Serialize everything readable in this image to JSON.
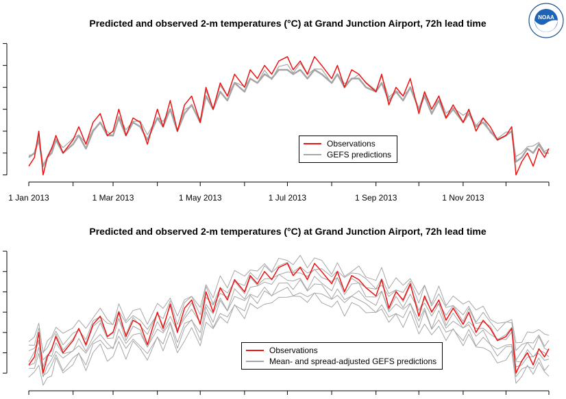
{
  "figure": {
    "logo_text": "NOAA",
    "colors": {
      "observations": "#ee1111",
      "predictions": "#a5a5a5",
      "axis": "#000000"
    }
  },
  "chart_data": [
    {
      "type": "line",
      "title": "Predicted and observed 2-m temperatures (°C) at Grand Junction Airport, 72h lead time",
      "xlabel": "",
      "ylabel": "",
      "x_axis": {
        "type": "date",
        "range": [
          "2013-01-01",
          "2013-12-31"
        ]
      },
      "x_tick_dates": [
        "2013-01-01",
        "2013-03-01",
        "2013-05-01",
        "2013-07-01",
        "2013-09-01",
        "2013-11-01"
      ],
      "x_tick_labels": [
        "1 Jan 2013",
        "1 Mar 2013",
        "1 May 2013",
        "1 Jul 2013",
        "1 Sep 2013",
        "1 Nov 2013"
      ],
      "y_tick_labels": [
        "",
        "",
        "",
        "",
        "",
        "",
        ""
      ],
      "y_ticks": [
        -15,
        -10,
        -5,
        0,
        5,
        10,
        15
      ],
      "ylim": [
        -16,
        14
      ],
      "legend": {
        "position": "center-right",
        "entries": [
          "Observations",
          "GEFS predictions"
        ]
      },
      "series": [
        {
          "name": "Observations",
          "x": [
            "2013-01-01",
            "2013-01-05",
            "2013-01-08",
            "2013-01-11",
            "2013-01-14",
            "2013-01-17",
            "2013-01-20",
            "2013-01-25",
            "2013-02-01",
            "2013-02-05",
            "2013-02-10",
            "2013-02-15",
            "2013-02-20",
            "2013-02-25",
            "2013-03-01",
            "2013-03-05",
            "2013-03-10",
            "2013-03-15",
            "2013-03-20",
            "2013-03-25",
            "2013-04-01",
            "2013-04-05",
            "2013-04-10",
            "2013-04-15",
            "2013-04-20",
            "2013-04-25",
            "2013-05-01",
            "2013-05-05",
            "2013-05-10",
            "2013-05-15",
            "2013-05-20",
            "2013-05-25",
            "2013-06-01",
            "2013-06-05",
            "2013-06-10",
            "2013-06-15",
            "2013-06-20",
            "2013-06-25",
            "2013-07-01",
            "2013-07-05",
            "2013-07-10",
            "2013-07-15",
            "2013-07-20",
            "2013-07-25",
            "2013-08-01",
            "2013-08-05",
            "2013-08-10",
            "2013-08-15",
            "2013-08-20",
            "2013-08-25",
            "2013-09-01",
            "2013-09-05",
            "2013-09-10",
            "2013-09-15",
            "2013-09-20",
            "2013-09-25",
            "2013-10-01",
            "2013-10-05",
            "2013-10-10",
            "2013-10-15",
            "2013-10-20",
            "2013-10-25",
            "2013-11-01",
            "2013-11-05",
            "2013-11-10",
            "2013-11-15",
            "2013-11-20",
            "2013-11-25",
            "2013-12-01",
            "2013-12-05",
            "2013-12-08",
            "2013-12-12",
            "2013-12-16",
            "2013-12-20",
            "2013-12-24",
            "2013-12-28",
            "2013-12-31"
          ],
          "values": [
            -13,
            -11,
            -5,
            -15,
            -11,
            -9,
            -6,
            -10,
            -7,
            -4,
            -8,
            -3,
            -1,
            -6,
            -5,
            0,
            -6,
            -2,
            -3,
            -8,
            0,
            -4,
            2,
            -5,
            1,
            3,
            -3,
            5,
            0,
            6,
            3,
            8,
            5,
            9,
            7,
            10,
            8,
            11,
            12,
            9,
            11,
            8,
            12,
            10,
            7,
            10,
            5,
            9,
            8,
            6,
            4,
            8,
            1,
            5,
            3,
            7,
            -1,
            4,
            0,
            3,
            -2,
            1,
            -3,
            0,
            -5,
            -2,
            -4,
            -7,
            -6,
            -4,
            -15,
            -12,
            -10,
            -13,
            -9,
            -11,
            -9
          ]
        },
        {
          "name": "GEFS predictions",
          "x": [
            "2013-01-01",
            "2013-01-05",
            "2013-01-08",
            "2013-01-11",
            "2013-01-14",
            "2013-01-17",
            "2013-01-20",
            "2013-01-25",
            "2013-02-01",
            "2013-02-05",
            "2013-02-10",
            "2013-02-15",
            "2013-02-20",
            "2013-02-25",
            "2013-03-01",
            "2013-03-05",
            "2013-03-10",
            "2013-03-15",
            "2013-03-20",
            "2013-03-25",
            "2013-04-01",
            "2013-04-05",
            "2013-04-10",
            "2013-04-15",
            "2013-04-20",
            "2013-04-25",
            "2013-05-01",
            "2013-05-05",
            "2013-05-10",
            "2013-05-15",
            "2013-05-20",
            "2013-05-25",
            "2013-06-01",
            "2013-06-05",
            "2013-06-10",
            "2013-06-15",
            "2013-06-20",
            "2013-06-25",
            "2013-07-01",
            "2013-07-05",
            "2013-07-10",
            "2013-07-15",
            "2013-07-20",
            "2013-07-25",
            "2013-08-01",
            "2013-08-05",
            "2013-08-10",
            "2013-08-15",
            "2013-08-20",
            "2013-08-25",
            "2013-09-01",
            "2013-09-05",
            "2013-09-10",
            "2013-09-15",
            "2013-09-20",
            "2013-09-25",
            "2013-10-01",
            "2013-10-05",
            "2013-10-10",
            "2013-10-15",
            "2013-10-20",
            "2013-10-25",
            "2013-11-01",
            "2013-11-05",
            "2013-11-10",
            "2013-11-15",
            "2013-11-20",
            "2013-11-25",
            "2013-12-01",
            "2013-12-05",
            "2013-12-08",
            "2013-12-12",
            "2013-12-16",
            "2013-12-20",
            "2013-12-24",
            "2013-12-28",
            "2013-12-31"
          ],
          "values": [
            -11,
            -10,
            -7,
            -13,
            -11,
            -10,
            -7,
            -10,
            -8,
            -6,
            -9,
            -5,
            -3,
            -6,
            -6,
            -2,
            -6,
            -3,
            -4,
            -7,
            -2,
            -4,
            0,
            -5,
            -1,
            1,
            -3,
            3,
            0,
            4,
            2,
            6,
            4,
            7,
            6,
            8,
            7,
            9,
            9,
            8,
            9,
            7,
            9,
            8,
            6,
            8,
            5,
            7,
            7,
            5,
            4,
            6,
            2,
            4,
            2,
            5,
            0,
            3,
            -1,
            2,
            -2,
            0,
            -3,
            -1,
            -4,
            -3,
            -5,
            -7,
            -6,
            -5,
            -12,
            -11,
            -9,
            -10,
            -8,
            -10,
            -10
          ]
        }
      ]
    },
    {
      "type": "line",
      "title": "Predicted and observed 2-m temperatures (°C) at Grand Junction Airport, 72h lead time",
      "xlabel": "",
      "ylabel": "",
      "x_axis": {
        "type": "date",
        "range": [
          "2013-01-01",
          "2013-12-31"
        ]
      },
      "y_tick_labels": [
        "",
        "",
        "",
        "",
        "",
        "",
        ""
      ],
      "y_ticks": [
        -15,
        -10,
        -5,
        0,
        5,
        10,
        15
      ],
      "ylim": [
        -18,
        14
      ],
      "legend": {
        "position": "bottom-center",
        "entries": [
          "Observations",
          "Mean- and spread-adjusted GEFS predictions"
        ]
      },
      "ensemble_offsets": [
        -5,
        -3.5,
        -2,
        -0.5,
        1,
        2.5,
        4
      ],
      "series": [
        {
          "name": "Observations",
          "x": [
            "2013-01-01",
            "2013-01-05",
            "2013-01-08",
            "2013-01-11",
            "2013-01-14",
            "2013-01-17",
            "2013-01-20",
            "2013-01-25",
            "2013-02-01",
            "2013-02-05",
            "2013-02-10",
            "2013-02-15",
            "2013-02-20",
            "2013-02-25",
            "2013-03-01",
            "2013-03-05",
            "2013-03-10",
            "2013-03-15",
            "2013-03-20",
            "2013-03-25",
            "2013-04-01",
            "2013-04-05",
            "2013-04-10",
            "2013-04-15",
            "2013-04-20",
            "2013-04-25",
            "2013-05-01",
            "2013-05-05",
            "2013-05-10",
            "2013-05-15",
            "2013-05-20",
            "2013-05-25",
            "2013-06-01",
            "2013-06-05",
            "2013-06-10",
            "2013-06-15",
            "2013-06-20",
            "2013-06-25",
            "2013-07-01",
            "2013-07-05",
            "2013-07-10",
            "2013-07-15",
            "2013-07-20",
            "2013-07-25",
            "2013-08-01",
            "2013-08-05",
            "2013-08-10",
            "2013-08-15",
            "2013-08-20",
            "2013-08-25",
            "2013-09-01",
            "2013-09-05",
            "2013-09-10",
            "2013-09-15",
            "2013-09-20",
            "2013-09-25",
            "2013-10-01",
            "2013-10-05",
            "2013-10-10",
            "2013-10-15",
            "2013-10-20",
            "2013-10-25",
            "2013-11-01",
            "2013-11-05",
            "2013-11-10",
            "2013-11-15",
            "2013-11-20",
            "2013-11-25",
            "2013-12-01",
            "2013-12-05",
            "2013-12-08",
            "2013-12-12",
            "2013-12-16",
            "2013-12-20",
            "2013-12-24",
            "2013-12-28",
            "2013-12-31"
          ],
          "values": [
            -13,
            -11,
            -5,
            -15,
            -11,
            -9,
            -6,
            -10,
            -7,
            -4,
            -8,
            -3,
            -1,
            -6,
            -5,
            0,
            -6,
            -2,
            -3,
            -8,
            0,
            -4,
            2,
            -5,
            1,
            3,
            -3,
            5,
            0,
            6,
            3,
            8,
            5,
            9,
            7,
            10,
            8,
            11,
            12,
            9,
            11,
            8,
            12,
            10,
            7,
            10,
            5,
            9,
            8,
            6,
            4,
            8,
            1,
            5,
            3,
            7,
            -1,
            4,
            0,
            3,
            -2,
            1,
            -3,
            0,
            -5,
            -2,
            -4,
            -7,
            -6,
            -4,
            -15,
            -12,
            -10,
            -13,
            -9,
            -11,
            -9
          ]
        },
        {
          "name": "Mean- and spread-adjusted GEFS predictions",
          "x": [
            "2013-01-01",
            "2013-01-05",
            "2013-01-08",
            "2013-01-11",
            "2013-01-14",
            "2013-01-17",
            "2013-01-20",
            "2013-01-25",
            "2013-02-01",
            "2013-02-05",
            "2013-02-10",
            "2013-02-15",
            "2013-02-20",
            "2013-02-25",
            "2013-03-01",
            "2013-03-05",
            "2013-03-10",
            "2013-03-15",
            "2013-03-20",
            "2013-03-25",
            "2013-04-01",
            "2013-04-05",
            "2013-04-10",
            "2013-04-15",
            "2013-04-20",
            "2013-04-25",
            "2013-05-01",
            "2013-05-05",
            "2013-05-10",
            "2013-05-15",
            "2013-05-20",
            "2013-05-25",
            "2013-06-01",
            "2013-06-05",
            "2013-06-10",
            "2013-06-15",
            "2013-06-20",
            "2013-06-25",
            "2013-07-01",
            "2013-07-05",
            "2013-07-10",
            "2013-07-15",
            "2013-07-20",
            "2013-07-25",
            "2013-08-01",
            "2013-08-05",
            "2013-08-10",
            "2013-08-15",
            "2013-08-20",
            "2013-08-25",
            "2013-09-01",
            "2013-09-05",
            "2013-09-10",
            "2013-09-15",
            "2013-09-20",
            "2013-09-25",
            "2013-10-01",
            "2013-10-05",
            "2013-10-10",
            "2013-10-15",
            "2013-10-20",
            "2013-10-25",
            "2013-11-01",
            "2013-11-05",
            "2013-11-10",
            "2013-11-15",
            "2013-11-20",
            "2013-11-25",
            "2013-12-01",
            "2013-12-05",
            "2013-12-08",
            "2013-12-12",
            "2013-12-16",
            "2013-12-20",
            "2013-12-24",
            "2013-12-28",
            "2013-12-31"
          ],
          "values": [
            -11,
            -10,
            -7,
            -13,
            -11,
            -10,
            -7,
            -10,
            -8,
            -6,
            -9,
            -5,
            -3,
            -6,
            -6,
            -2,
            -6,
            -3,
            -4,
            -7,
            -2,
            -4,
            0,
            -5,
            -1,
            1,
            -3,
            3,
            0,
            4,
            2,
            6,
            4,
            7,
            6,
            8,
            7,
            9,
            9,
            8,
            9,
            7,
            9,
            8,
            6,
            8,
            5,
            7,
            7,
            5,
            4,
            6,
            2,
            4,
            2,
            5,
            0,
            3,
            -1,
            2,
            -2,
            0,
            -3,
            -1,
            -4,
            -3,
            -5,
            -7,
            -6,
            -5,
            -12,
            -11,
            -9,
            -10,
            -8,
            -10,
            -10
          ]
        }
      ]
    }
  ]
}
